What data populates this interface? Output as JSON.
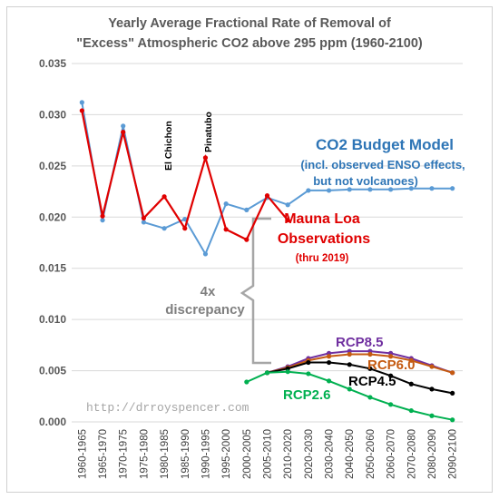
{
  "chart_data": {
    "type": "line",
    "title_lines": [
      "Yearly Average Fractional Rate of Removal of",
      "\"Excess\" Atmospheric CO2 above 295 ppm (1960-2100)"
    ],
    "categories": [
      "1960-1965",
      "1965-1970",
      "1970-1975",
      "1975-1980",
      "1980-1985",
      "1985-1990",
      "1990-1995",
      "1995-2000",
      "2000-2005",
      "2005-2010",
      "2010-2020",
      "2020-2030",
      "2030-2040",
      "2040-2050",
      "2050-2060",
      "2060-2070",
      "2070-2080",
      "2080-2090",
      "2090-2100"
    ],
    "yticks": [
      "0.000",
      "0.005",
      "0.010",
      "0.015",
      "0.020",
      "0.025",
      "0.030",
      "0.035"
    ],
    "ylim": [
      0,
      0.035
    ],
    "grid": true,
    "series": [
      {
        "key": "model",
        "color": "#5b9bd5",
        "values": [
          0.0312,
          0.0197,
          0.0289,
          0.0195,
          0.0189,
          0.0198,
          0.0164,
          0.0213,
          0.0207,
          0.0219,
          0.0212,
          0.0226,
          0.0226,
          0.0227,
          0.0227,
          0.0227,
          0.0228,
          0.0228,
          0.0228
        ]
      },
      {
        "key": "observed",
        "color": "#e00000",
        "values": [
          0.0304,
          0.0201,
          0.0283,
          0.0199,
          0.022,
          0.0189,
          0.0258,
          0.0188,
          0.0178,
          0.0221,
          0.0197,
          null,
          null,
          null,
          null,
          null,
          null,
          null,
          null
        ]
      },
      {
        "name": "RCP8.5",
        "color": "#7030a0",
        "values": [
          null,
          null,
          null,
          null,
          null,
          null,
          null,
          null,
          null,
          0.0048,
          0.0054,
          0.0062,
          0.0067,
          0.0069,
          0.0069,
          0.0067,
          0.0062,
          0.0055,
          0.0048
        ]
      },
      {
        "name": "RCP6.0",
        "color": "#c55a11",
        "values": [
          null,
          null,
          null,
          null,
          null,
          null,
          null,
          null,
          null,
          0.0048,
          0.0053,
          0.006,
          0.0064,
          0.0066,
          0.0066,
          0.0064,
          0.006,
          0.0054,
          0.0048
        ]
      },
      {
        "name": "RCP4.5",
        "color": "#000000",
        "values": [
          null,
          null,
          null,
          null,
          null,
          null,
          null,
          null,
          null,
          0.0048,
          0.0052,
          0.0058,
          0.0058,
          0.0056,
          0.0052,
          0.0045,
          0.0037,
          0.0032,
          0.0028
        ]
      },
      {
        "name": "RCP2.6",
        "color": "#00b050",
        "values": [
          null,
          null,
          null,
          null,
          null,
          null,
          null,
          null,
          0.0039,
          0.0048,
          0.0049,
          0.0047,
          0.004,
          0.0032,
          0.0024,
          0.0017,
          0.0011,
          0.0006,
          0.0002
        ]
      }
    ],
    "annotations": {
      "model_title": "CO2 Budget Model",
      "model_sub1": "(incl. observed ENSO effects,",
      "model_sub2": "but not volcanoes)",
      "obs_title1": "Mauna Loa",
      "obs_title2": "Observations",
      "obs_sub": "(thru 2019)",
      "disc1": "4x",
      "disc2": "discrepancy",
      "volcano1": "El Chichon",
      "volcano2": "Pinatubo",
      "url": "http://drroyspencer.com"
    }
  }
}
